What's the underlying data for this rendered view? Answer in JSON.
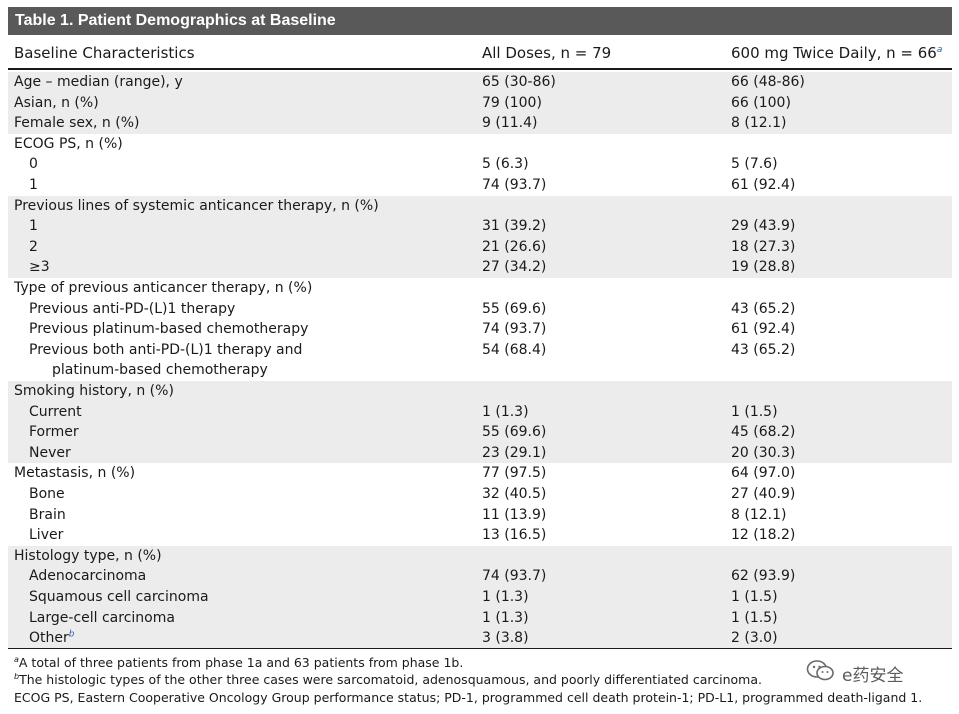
{
  "title": "Table 1. Patient Demographics at Baseline",
  "columns": [
    "Baseline Characteristics",
    "All Doses, n = 79",
    "600 mg Twice Daily, n = 66"
  ],
  "column_footnote": "a",
  "groups": [
    {
      "shade": true,
      "rows": [
        {
          "label": "Age – median (range), y",
          "a": "65 (30-86)",
          "b": "66 (48-86)",
          "indent": 0
        },
        {
          "label": "Asian, n (%)",
          "a": "79 (100)",
          "b": "66 (100)",
          "indent": 0
        },
        {
          "label": "Female sex, n (%)",
          "a": "9 (11.4)",
          "b": "8 (12.1)",
          "indent": 0
        }
      ]
    },
    {
      "shade": false,
      "rows": [
        {
          "label": "ECOG PS, n (%)",
          "a": "",
          "b": "",
          "indent": 0
        },
        {
          "label": "0",
          "a": "5 (6.3)",
          "b": "5 (7.6)",
          "indent": 1
        },
        {
          "label": "1",
          "a": "74 (93.7)",
          "b": "61 (92.4)",
          "indent": 1
        }
      ]
    },
    {
      "shade": true,
      "rows": [
        {
          "label": "Previous lines of systemic anticancer therapy, n (%)",
          "a": "",
          "b": "",
          "indent": 0
        },
        {
          "label": "1",
          "a": "31 (39.2)",
          "b": "29 (43.9)",
          "indent": 1
        },
        {
          "label": "2",
          "a": "21 (26.6)",
          "b": "18 (27.3)",
          "indent": 1
        },
        {
          "label": "≥3",
          "a": "27 (34.2)",
          "b": "19 (28.8)",
          "indent": 1
        }
      ]
    },
    {
      "shade": false,
      "rows": [
        {
          "label": "Type of previous anticancer therapy, n (%)",
          "a": "",
          "b": "",
          "indent": 0
        },
        {
          "label": "Previous anti-PD-(L)1 therapy",
          "a": "55 (69.6)",
          "b": "43 (65.2)",
          "indent": 1
        },
        {
          "label": "Previous platinum-based chemotherapy",
          "a": "74 (93.7)",
          "b": "61 (92.4)",
          "indent": 1
        },
        {
          "label": "Previous both anti-PD-(L)1 therapy and",
          "a": "54 (68.4)",
          "b": "43 (65.2)",
          "indent": 1
        },
        {
          "label": "platinum-based chemotherapy",
          "a": "",
          "b": "",
          "indent": 2
        }
      ]
    },
    {
      "shade": true,
      "rows": [
        {
          "label": "Smoking history, n (%)",
          "a": "",
          "b": "",
          "indent": 0
        },
        {
          "label": "Current",
          "a": "1 (1.3)",
          "b": "1 (1.5)",
          "indent": 1
        },
        {
          "label": "Former",
          "a": "55 (69.6)",
          "b": "45 (68.2)",
          "indent": 1
        },
        {
          "label": "Never",
          "a": "23 (29.1)",
          "b": "20 (30.3)",
          "indent": 1
        }
      ]
    },
    {
      "shade": false,
      "rows": [
        {
          "label": "Metastasis, n (%)",
          "a": "77 (97.5)",
          "b": "64 (97.0)",
          "indent": 0
        },
        {
          "label": "Bone",
          "a": "32 (40.5)",
          "b": "27 (40.9)",
          "indent": 1
        },
        {
          "label": "Brain",
          "a": "11 (13.9)",
          "b": "8 (12.1)",
          "indent": 1
        },
        {
          "label": "Liver",
          "a": "13 (16.5)",
          "b": "12 (18.2)",
          "indent": 1
        }
      ]
    },
    {
      "shade": true,
      "rows": [
        {
          "label": "Histology type, n (%)",
          "a": "",
          "b": "",
          "indent": 0
        },
        {
          "label": "Adenocarcinoma",
          "a": "74 (93.7)",
          "b": "62 (93.9)",
          "indent": 1
        },
        {
          "label": "Squamous cell carcinoma",
          "a": "1 (1.3)",
          "b": "1 (1.5)",
          "indent": 1
        },
        {
          "label": "Large-cell carcinoma",
          "a": "1 (1.3)",
          "b": "1 (1.5)",
          "indent": 1
        },
        {
          "label": "Other",
          "a": "3 (3.8)",
          "b": "2 (3.0)",
          "indent": 1,
          "footnote": "b"
        }
      ]
    }
  ],
  "footnotes": [
    {
      "mark": "a",
      "text": "A total of three patients from phase 1a and 63 patients from phase 1b."
    },
    {
      "mark": "b",
      "text": "The histologic types of the other three cases were sarcomatoid, adenosquamous, and poorly differentiated carcinoma."
    },
    {
      "mark": "",
      "text": "ECOG PS, Eastern Cooperative Oncology Group performance status; PD-1, programmed cell death protein-1; PD-L1, programmed death-ligand 1."
    }
  ],
  "watermark": {
    "text": "e药安全",
    "icon": "wechat-icon"
  }
}
